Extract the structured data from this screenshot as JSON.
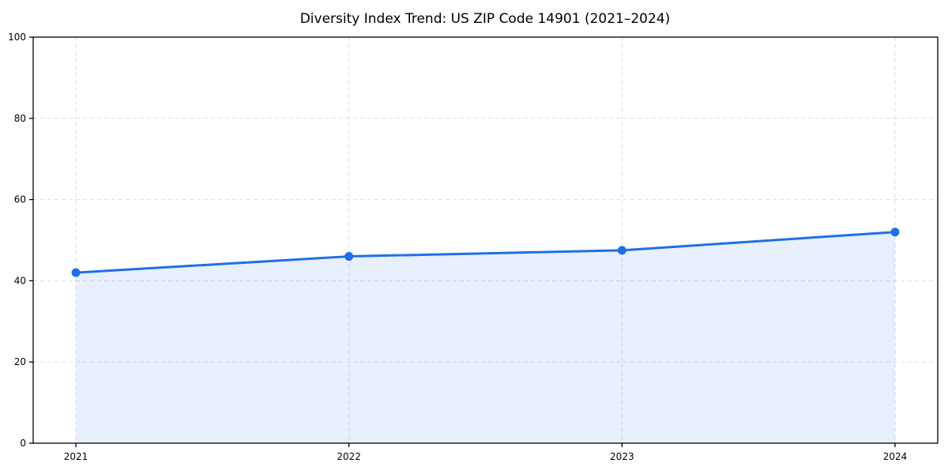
{
  "chart_data": {
    "type": "area",
    "title": "Diversity Index Trend: US ZIP Code 14901 (2021–2024)",
    "x": [
      "2021",
      "2022",
      "2023",
      "2024"
    ],
    "series": [
      {
        "name": "Diversity Index",
        "values": [
          42,
          46,
          47.5,
          52
        ]
      }
    ],
    "xlabel": "",
    "ylabel": "",
    "ylim": [
      0,
      100
    ],
    "yticks": [
      0,
      20,
      40,
      60,
      80,
      100
    ],
    "grid": "dashed both axes",
    "legend_position": "none",
    "colors": {
      "line": "#1f6fe8",
      "marker": "#1f6fe8",
      "fill": "#1f6fe8",
      "grid": "#dcdcdc",
      "axis": "#000000",
      "background": "#ffffff"
    }
  }
}
